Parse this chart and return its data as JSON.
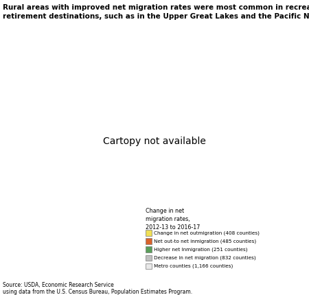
{
  "title": "Rural areas with improved net migration rates were most common in recreation and\nretirement destinations, such as in the Upper Great Lakes and the Pacific Northwest",
  "title_fontsize": 7.5,
  "source_text": "Source: USDA, Economic Research Service\nusing data from the U.S. Census Bureau, Population Estimates Program.",
  "legend_title": "Change in net\nmigration rates,\n2012-13 to 2016-17",
  "legend_items": [
    {
      "label": "Change in net outmigration (408 counties)",
      "color": "#f0e056"
    },
    {
      "label": "Net out-to net inmigration (485 counties)",
      "color": "#d9622b"
    },
    {
      "label": "Higher net Inmigration (251 counties)",
      "color": "#5a9e5a"
    },
    {
      "label": "Decrease in net migration (832 counties)",
      "color": "#c0c0c0"
    },
    {
      "label": "Metro counties (1,166 counties)",
      "color": "#e8e8e8"
    }
  ],
  "background_color": "#ffffff",
  "map_background": "#cce5f5",
  "state_edge_color": "#555555",
  "county_edge_color": "#999999",
  "state_linewidth": 0.5,
  "county_linewidth": 0.15,
  "fig_width": 4.5,
  "fig_height": 4.3,
  "dpi": 100
}
